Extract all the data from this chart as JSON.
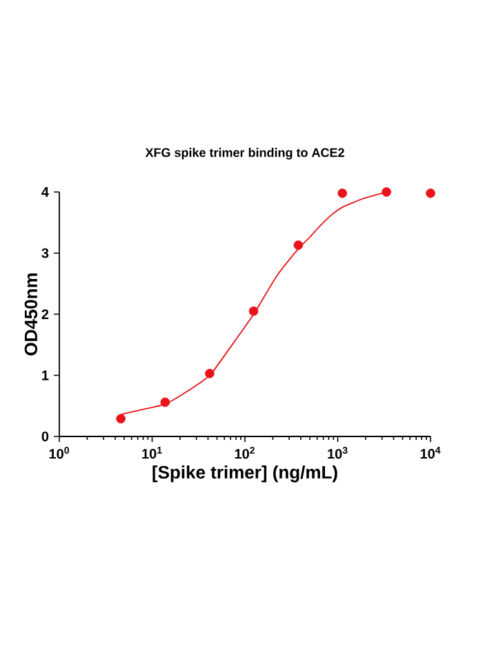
{
  "chart_data": {
    "type": "scatter",
    "title": "XFG spike trimer binding to ACE2",
    "xlabel": "[Spike trimer] (ng/mL)",
    "ylabel": "OD450nm",
    "log": "x",
    "xlim": [
      1,
      10000
    ],
    "ylim": [
      0,
      4
    ],
    "xticks": [
      {
        "value": 1,
        "label": "10$^{0}$"
      },
      {
        "value": 10,
        "label": "10$^{1}$"
      },
      {
        "value": 100,
        "label": "10$^{2}$"
      },
      {
        "value": 1000,
        "label": "10$^{3}$"
      },
      {
        "value": 10000,
        "label": "10$^{4}$"
      }
    ],
    "yticks": [
      0,
      1,
      2,
      3,
      4
    ],
    "series": [
      {
        "type": "scatter",
        "marker": "circle",
        "color": "#e8141a",
        "x": [
          4.6,
          13.8,
          41.7,
          124,
          376,
          1122,
          3350,
          10000
        ],
        "values": [
          0.29,
          0.56,
          1.03,
          2.05,
          3.13,
          3.98,
          4.0,
          3.98
        ]
      },
      {
        "type": "line",
        "marker": "none",
        "color": "#e8141a",
        "x": [
          4.6,
          7.8,
          13.8,
          24,
          41.7,
          72,
          124,
          219,
          376,
          500,
          650,
          850,
          1122,
          1950,
          3350
        ],
        "values": [
          0.36,
          0.44,
          0.53,
          0.74,
          1.0,
          1.49,
          2.0,
          2.62,
          3.07,
          3.26,
          3.45,
          3.62,
          3.75,
          3.9,
          4.0
        ]
      }
    ]
  }
}
